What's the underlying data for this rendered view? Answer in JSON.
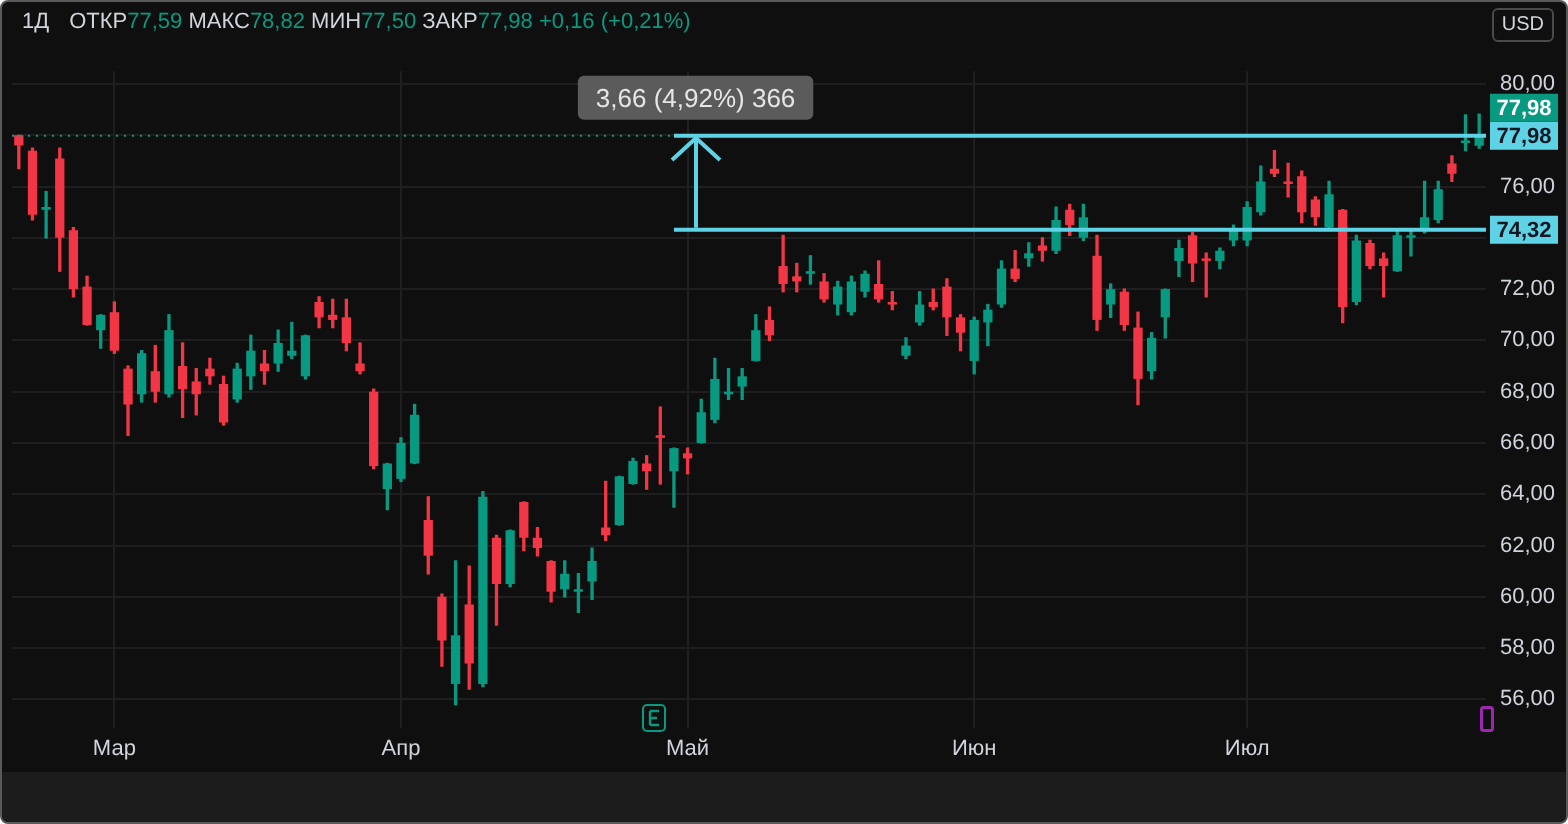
{
  "chart_data": {
    "type": "candlestick",
    "title": "1Д",
    "subtitle": "ОТКР77,59 МАКС78,82 МИН77,50 ЗАКР77,98 +0,16 (+0,21%)",
    "ylabel": "USD",
    "categories": [
      null,
      null,
      null,
      null,
      null,
      null,
      null,
      "Мар",
      null,
      null,
      null,
      null,
      null,
      null,
      null,
      null,
      null,
      null,
      null,
      null,
      null,
      null,
      null,
      null,
      null,
      null,
      null,
      null,
      "Апр",
      null,
      null,
      null,
      null,
      null,
      null,
      null,
      null,
      null,
      null,
      null,
      null,
      null,
      null,
      null,
      null,
      null,
      null,
      null,
      null,
      "Май",
      null,
      null,
      null,
      null,
      null,
      null,
      null,
      null,
      null,
      null,
      null,
      null,
      null,
      null,
      null,
      null,
      null,
      null,
      null,
      null,
      "Июн",
      null,
      null,
      null,
      null,
      null,
      null,
      null,
      null,
      null,
      null,
      null,
      null,
      null,
      null,
      null,
      null,
      null,
      null,
      null,
      "Июл",
      null,
      null,
      null,
      null,
      null,
      null,
      null,
      null,
      null,
      null,
      null,
      null,
      null,
      null,
      null,
      null,
      null
    ],
    "ohlc": [
      [
        78.0,
        78.0,
        76.7,
        77.6
      ],
      [
        77.4,
        77.5,
        74.7,
        74.9
      ],
      [
        75.1,
        75.8,
        74.0,
        75.2
      ],
      [
        77.1,
        77.5,
        72.7,
        74.0
      ],
      [
        74.3,
        74.4,
        71.7,
        72.0
      ],
      [
        72.1,
        72.5,
        70.6,
        70.6
      ],
      [
        70.4,
        71.0,
        69.7,
        71.0
      ],
      [
        71.1,
        71.5,
        69.5,
        69.6
      ],
      [
        68.9,
        69.0,
        66.3,
        67.5
      ],
      [
        67.9,
        69.6,
        67.6,
        69.5
      ],
      [
        68.8,
        69.8,
        67.6,
        68.0
      ],
      [
        67.9,
        71.0,
        67.8,
        70.4
      ],
      [
        69.0,
        69.9,
        67.0,
        68.1
      ],
      [
        68.4,
        68.9,
        67.1,
        67.9
      ],
      [
        68.9,
        69.3,
        68.3,
        68.6
      ],
      [
        68.3,
        68.6,
        66.7,
        66.8
      ],
      [
        67.7,
        69.1,
        67.6,
        68.9
      ],
      [
        68.6,
        70.2,
        68.1,
        69.6
      ],
      [
        69.1,
        69.6,
        68.3,
        68.8
      ],
      [
        69.1,
        70.4,
        68.8,
        69.9
      ],
      [
        69.4,
        70.7,
        69.3,
        69.6
      ],
      [
        68.6,
        70.2,
        68.5,
        70.2
      ],
      [
        71.5,
        71.7,
        70.5,
        70.9
      ],
      [
        71.0,
        71.6,
        70.5,
        70.8
      ],
      [
        70.9,
        71.6,
        69.6,
        69.9
      ],
      [
        69.1,
        69.9,
        68.7,
        68.8
      ],
      [
        68.0,
        68.1,
        65.0,
        65.1
      ],
      [
        64.2,
        65.2,
        63.4,
        65.2
      ],
      [
        64.6,
        66.2,
        64.5,
        66.0
      ],
      [
        65.2,
        67.5,
        65.2,
        67.1
      ],
      [
        63.0,
        63.9,
        60.9,
        61.6
      ],
      [
        60.0,
        60.1,
        57.3,
        58.3
      ],
      [
        56.6,
        61.4,
        55.8,
        58.5
      ],
      [
        59.7,
        61.2,
        56.4,
        57.4
      ],
      [
        56.6,
        64.1,
        56.5,
        63.9
      ],
      [
        62.3,
        62.4,
        58.9,
        60.5
      ],
      [
        60.5,
        62.6,
        60.4,
        62.6
      ],
      [
        63.7,
        63.7,
        61.8,
        62.3
      ],
      [
        62.3,
        62.7,
        61.6,
        61.9
      ],
      [
        61.4,
        61.4,
        59.8,
        60.2
      ],
      [
        60.3,
        61.4,
        60.0,
        60.9
      ],
      [
        60.2,
        60.9,
        59.4,
        60.3
      ],
      [
        60.6,
        61.9,
        59.9,
        61.4
      ],
      [
        62.7,
        64.5,
        62.2,
        62.4
      ],
      [
        62.8,
        64.7,
        62.8,
        64.7
      ],
      [
        64.4,
        65.4,
        64.4,
        65.3
      ],
      [
        65.2,
        65.5,
        64.2,
        64.9
      ],
      [
        66.3,
        67.4,
        64.4,
        66.2
      ],
      [
        64.9,
        65.8,
        63.5,
        65.8
      ],
      [
        65.6,
        65.8,
        64.8,
        65.4
      ],
      [
        66.0,
        67.7,
        66.0,
        67.2
      ],
      [
        66.9,
        69.3,
        66.8,
        68.5
      ],
      [
        67.9,
        68.9,
        67.7,
        68.0
      ],
      [
        68.2,
        68.9,
        67.7,
        68.6
      ],
      [
        69.2,
        71.0,
        69.2,
        70.4
      ],
      [
        70.8,
        71.3,
        70.0,
        70.2
      ],
      [
        72.9,
        74.1,
        71.9,
        72.2
      ],
      [
        72.5,
        73.0,
        71.9,
        72.3
      ],
      [
        72.6,
        73.3,
        72.2,
        72.7
      ],
      [
        72.3,
        72.6,
        71.5,
        71.6
      ],
      [
        71.4,
        72.3,
        71.0,
        72.1
      ],
      [
        71.1,
        72.5,
        71.0,
        72.3
      ],
      [
        71.9,
        72.7,
        71.7,
        72.6
      ],
      [
        72.2,
        73.1,
        71.5,
        71.6
      ],
      [
        71.5,
        71.9,
        71.2,
        71.4
      ],
      [
        69.4,
        70.1,
        69.3,
        69.8
      ],
      [
        70.7,
        71.9,
        70.6,
        71.4
      ],
      [
        71.5,
        72.0,
        71.2,
        71.3
      ],
      [
        72.1,
        72.4,
        70.2,
        70.9
      ],
      [
        70.9,
        71.0,
        69.6,
        70.3
      ],
      [
        69.2,
        70.9,
        68.7,
        70.8
      ],
      [
        70.7,
        71.4,
        69.8,
        71.2
      ],
      [
        71.4,
        73.1,
        71.3,
        72.8
      ],
      [
        72.8,
        73.5,
        72.3,
        72.4
      ],
      [
        73.2,
        73.8,
        72.9,
        73.4
      ],
      [
        73.7,
        74.0,
        73.1,
        73.5
      ],
      [
        73.5,
        75.2,
        73.4,
        74.7
      ],
      [
        75.1,
        75.3,
        74.1,
        74.5
      ],
      [
        74.0,
        75.3,
        73.9,
        74.8
      ],
      [
        73.3,
        74.1,
        70.4,
        70.8
      ],
      [
        71.4,
        72.2,
        70.9,
        72.0
      ],
      [
        71.9,
        72.0,
        70.4,
        70.6
      ],
      [
        70.5,
        71.1,
        67.5,
        68.5
      ],
      [
        68.8,
        70.3,
        68.5,
        70.1
      ],
      [
        70.9,
        72.0,
        70.1,
        72.0
      ],
      [
        73.1,
        73.9,
        72.5,
        73.6
      ],
      [
        74.1,
        74.2,
        72.3,
        73.0
      ],
      [
        73.2,
        73.4,
        71.7,
        73.1
      ],
      [
        73.1,
        73.6,
        72.8,
        73.5
      ],
      [
        73.9,
        74.5,
        73.7,
        74.3
      ],
      [
        73.9,
        75.4,
        73.7,
        75.2
      ],
      [
        75.0,
        76.8,
        74.9,
        76.2
      ],
      [
        76.7,
        77.4,
        76.4,
        76.5
      ],
      [
        76.2,
        76.9,
        75.6,
        76.1
      ],
      [
        76.4,
        76.6,
        74.6,
        75.0
      ],
      [
        75.5,
        75.6,
        74.5,
        74.8
      ],
      [
        74.4,
        76.2,
        74.3,
        75.7
      ],
      [
        75.1,
        75.1,
        70.7,
        71.3
      ],
      [
        71.5,
        74.1,
        71.4,
        73.9
      ],
      [
        73.8,
        73.9,
        72.8,
        72.9
      ],
      [
        73.2,
        73.4,
        71.7,
        72.9
      ],
      [
        72.7,
        74.3,
        72.7,
        74.1
      ],
      [
        74.0,
        74.3,
        73.3,
        74.1
      ],
      [
        74.3,
        76.2,
        74.2,
        74.8
      ],
      [
        74.7,
        76.2,
        74.6,
        75.9
      ],
      [
        76.9,
        77.2,
        76.2,
        76.5
      ],
      [
        77.7,
        78.8,
        77.4,
        77.8
      ],
      [
        77.59,
        78.82,
        77.5,
        77.98
      ]
    ],
    "colors": [
      "#f23645",
      "#f23645",
      "#089981",
      "#f23645",
      "#f23645",
      "#f23645",
      "#089981",
      "#f23645",
      "#f23645",
      "#089981",
      "#f23645",
      "#089981",
      "#f23645",
      "#f23645",
      "#f23645",
      "#f23645",
      "#089981",
      "#089981",
      "#f23645",
      "#089981",
      "#089981",
      "#089981",
      "#f23645",
      "#f23645",
      "#f23645",
      "#f23645",
      "#f23645",
      "#089981",
      "#089981",
      "#089981",
      "#f23645",
      "#f23645",
      "#089981",
      "#f23645",
      "#089981",
      "#f23645",
      "#089981",
      "#f23645",
      "#f23645",
      "#f23645",
      "#089981",
      "#089981",
      "#089981",
      "#f23645",
      "#089981",
      "#089981",
      "#f23645",
      "#f23645",
      "#089981",
      "#f23645",
      "#089981",
      "#089981",
      "#089981",
      "#089981",
      "#089981",
      "#f23645",
      "#f23645",
      "#f23645",
      "#089981",
      "#f23645",
      "#089981",
      "#089981",
      "#089981",
      "#f23645",
      "#f23645",
      "#089981",
      "#089981",
      "#f23645",
      "#f23645",
      "#f23645",
      "#089981",
      "#089981",
      "#089981",
      "#f23645",
      "#089981",
      "#f23645",
      "#089981",
      "#f23645",
      "#089981",
      "#f23645",
      "#089981",
      "#f23645",
      "#f23645",
      "#089981",
      "#089981",
      "#089981",
      "#f23645",
      "#f23645",
      "#089981",
      "#089981",
      "#089981",
      "#089981",
      "#f23645",
      "#f23645",
      "#f23645",
      "#f23645",
      "#089981",
      "#f23645",
      "#089981",
      "#f23645",
      "#f23645",
      "#089981",
      "#089981",
      "#089981",
      "#089981",
      "#f23645",
      "#089981",
      "#089981"
    ],
    "ylim": [
      54.9,
      80.5
    ],
    "yticks": [
      {
        "value": 56,
        "label": "56,00"
      },
      {
        "value": 58,
        "label": "58,00"
      },
      {
        "value": 60,
        "label": "60,00"
      },
      {
        "value": 62,
        "label": "62,00"
      },
      {
        "value": 64,
        "label": "64,00"
      },
      {
        "value": 66,
        "label": "66,00"
      },
      {
        "value": 68,
        "label": "68,00"
      },
      {
        "value": 70,
        "label": "70,00"
      },
      {
        "value": 72,
        "label": "72,00"
      },
      {
        "value": 74,
        "label": null
      },
      {
        "value": 76,
        "label": "76,00"
      },
      {
        "value": 78,
        "label": null
      },
      {
        "value": 80,
        "label": "80,00"
      }
    ],
    "grid": true,
    "ref_lines": [
      {
        "axis": "y",
        "value": 77.98,
        "label": "77,98",
        "color": "#089981",
        "line_style": "dotted"
      },
      {
        "axis": "y",
        "value": 77.98,
        "label": "77,98",
        "color": "#5fd3e6"
      },
      {
        "axis": "y",
        "value": 74.32,
        "label": "74,32",
        "color": "#5fd3e6"
      }
    ],
    "annotations": [
      {
        "text": "3,66 (4,92%) 366",
        "x": "Май",
        "y": 77.98
      }
    ]
  }
}
